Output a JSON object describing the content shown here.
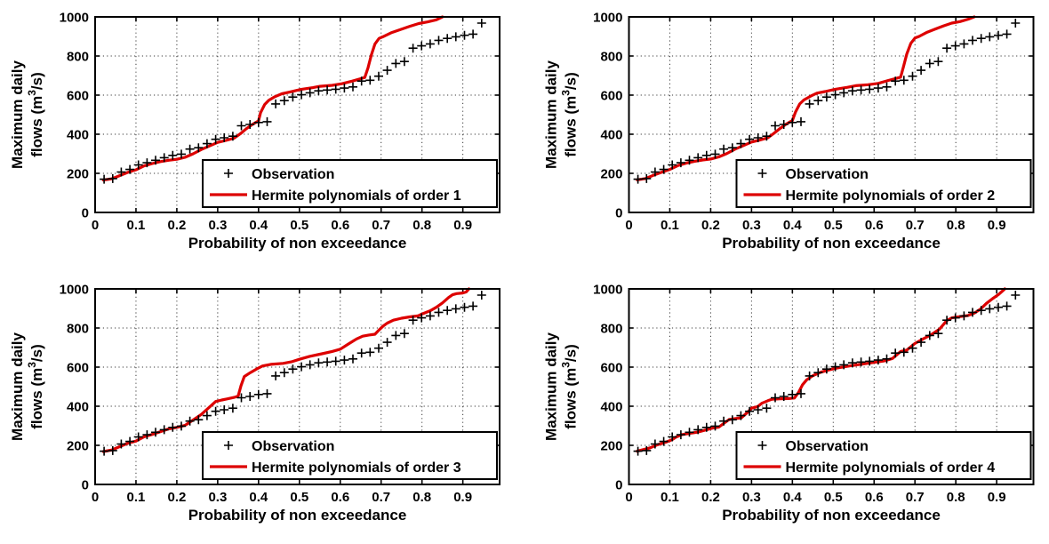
{
  "figure": {
    "background": "#ffffff"
  },
  "colors": {
    "hermite_line": "#dd0000",
    "observation_marker": "#000000",
    "grid": "#3a3a3a",
    "axis": "#000000",
    "legend_border": "#000000",
    "legend_background": "#ffffff",
    "text": "#000000"
  },
  "chart_data": {
    "type": "line",
    "layout": "2x2 grid of identical-axis plots",
    "xlabel": "Probability of non exceedance",
    "ylabel": {
      "line1": "Maximum daily",
      "line2_pre": "flows (m",
      "line2_sup": "3",
      "line2_post": "/s)"
    },
    "xlim": [
      0,
      0.99
    ],
    "ylim": [
      0,
      1000
    ],
    "grid": true,
    "xtick_values": [
      0,
      0.1,
      0.2,
      0.3,
      0.4,
      0.5,
      0.6,
      0.7,
      0.8,
      0.9
    ],
    "xtick_labels": [
      "0",
      "0.1",
      "0.2",
      "0.3",
      "0.4",
      "0.5",
      "0.6",
      "0.7",
      "0.8",
      "0.9"
    ],
    "ytick_values": [
      0,
      200,
      400,
      600,
      800,
      1000
    ],
    "ytick_labels": [
      "0",
      "200",
      "400",
      "600",
      "800",
      "1000"
    ],
    "legend_position": "inside lower right",
    "observation_legend": "Observation",
    "observations": {
      "x": [
        0.022,
        0.043,
        0.064,
        0.085,
        0.106,
        0.127,
        0.148,
        0.169,
        0.19,
        0.211,
        0.232,
        0.253,
        0.274,
        0.295,
        0.316,
        0.337,
        0.358,
        0.379,
        0.4,
        0.421,
        0.442,
        0.463,
        0.484,
        0.505,
        0.526,
        0.547,
        0.568,
        0.589,
        0.61,
        0.631,
        0.652,
        0.673,
        0.694,
        0.715,
        0.736,
        0.757,
        0.778,
        0.799,
        0.82,
        0.841,
        0.862,
        0.883,
        0.904,
        0.925,
        0.946
      ],
      "y": [
        170,
        173,
        207,
        220,
        243,
        254,
        267,
        280,
        292,
        298,
        324,
        331,
        352,
        374,
        382,
        390,
        443,
        450,
        460,
        464,
        555,
        572,
        590,
        602,
        612,
        622,
        626,
        630,
        636,
        642,
        672,
        676,
        697,
        727,
        762,
        772,
        840,
        852,
        862,
        880,
        890,
        898,
        906,
        912,
        968
      ]
    },
    "panels": [
      {
        "legend": "Hermite polynomials of order 1",
        "curve": {
          "x": [
            0.02,
            0.04,
            0.06,
            0.08,
            0.1,
            0.12,
            0.14,
            0.16,
            0.18,
            0.2,
            0.22,
            0.24,
            0.26,
            0.28,
            0.3,
            0.32,
            0.34,
            0.355,
            0.37,
            0.385,
            0.4,
            0.405,
            0.415,
            0.425,
            0.44,
            0.457,
            0.475,
            0.504,
            0.533,
            0.55,
            0.58,
            0.604,
            0.63,
            0.65,
            0.66,
            0.668,
            0.676,
            0.685,
            0.695,
            0.704,
            0.726,
            0.748,
            0.77,
            0.792,
            0.813,
            0.835,
            0.85
          ],
          "y": [
            166,
            172,
            188,
            205,
            218,
            238,
            250,
            260,
            267,
            272,
            282,
            300,
            322,
            340,
            358,
            368,
            380,
            402,
            428,
            450,
            468,
            510,
            552,
            573,
            592,
            607,
            615,
            629,
            638,
            645,
            650,
            658,
            672,
            684,
            690,
            740,
            805,
            862,
            890,
            898,
            920,
            936,
            952,
            966,
            974,
            985,
            1000
          ]
        }
      },
      {
        "legend": "Hermite polynomials of order 2",
        "curve": {
          "x": [
            0.02,
            0.04,
            0.06,
            0.08,
            0.1,
            0.12,
            0.14,
            0.16,
            0.18,
            0.2,
            0.22,
            0.24,
            0.26,
            0.28,
            0.3,
            0.32,
            0.34,
            0.355,
            0.37,
            0.385,
            0.4,
            0.408,
            0.418,
            0.428,
            0.445,
            0.46,
            0.48,
            0.505,
            0.535,
            0.555,
            0.585,
            0.61,
            0.635,
            0.655,
            0.665,
            0.672,
            0.68,
            0.69,
            0.7,
            0.71,
            0.73,
            0.75,
            0.77,
            0.79,
            0.81,
            0.83,
            0.845
          ],
          "y": [
            167,
            173,
            190,
            206,
            220,
            240,
            252,
            261,
            268,
            273,
            284,
            302,
            324,
            342,
            360,
            370,
            382,
            405,
            430,
            452,
            470,
            515,
            555,
            575,
            595,
            610,
            618,
            630,
            640,
            648,
            653,
            660,
            675,
            686,
            692,
            745,
            810,
            865,
            892,
            900,
            922,
            938,
            954,
            968,
            976,
            988,
            1000
          ]
        }
      },
      {
        "legend": "Hermite polynomials of order 3",
        "curve": {
          "x": [
            0.02,
            0.04,
            0.06,
            0.08,
            0.1,
            0.12,
            0.14,
            0.16,
            0.18,
            0.2,
            0.22,
            0.24,
            0.26,
            0.28,
            0.295,
            0.31,
            0.325,
            0.34,
            0.35,
            0.357,
            0.365,
            0.38,
            0.395,
            0.41,
            0.43,
            0.46,
            0.48,
            0.5,
            0.525,
            0.555,
            0.58,
            0.6,
            0.62,
            0.64,
            0.655,
            0.67,
            0.685,
            0.695,
            0.705,
            0.715,
            0.73,
            0.75,
            0.77,
            0.79,
            0.8,
            0.82,
            0.835,
            0.85,
            0.865,
            0.875,
            0.885,
            0.9,
            0.908,
            0.915
          ],
          "y": [
            168,
            176,
            193,
            211,
            222,
            244,
            256,
            270,
            284,
            292,
            302,
            330,
            358,
            396,
            424,
            432,
            438,
            445,
            452,
            505,
            552,
            572,
            590,
            606,
            614,
            619,
            627,
            640,
            655,
            668,
            680,
            692,
            718,
            744,
            758,
            764,
            768,
            790,
            810,
            825,
            840,
            850,
            857,
            862,
            872,
            888,
            906,
            928,
            956,
            970,
            976,
            979,
            984,
            1000
          ]
        }
      },
      {
        "legend": "Hermite polynomials of order 4",
        "curve": {
          "x": [
            0.02,
            0.035,
            0.05,
            0.07,
            0.09,
            0.105,
            0.115,
            0.13,
            0.15,
            0.17,
            0.19,
            0.205,
            0.22,
            0.232,
            0.245,
            0.26,
            0.275,
            0.29,
            0.3,
            0.315,
            0.325,
            0.34,
            0.35,
            0.37,
            0.39,
            0.405,
            0.415,
            0.425,
            0.435,
            0.45,
            0.47,
            0.49,
            0.51,
            0.54,
            0.57,
            0.6,
            0.625,
            0.645,
            0.655,
            0.665,
            0.68,
            0.7,
            0.72,
            0.74,
            0.76,
            0.778,
            0.79,
            0.81,
            0.83,
            0.845,
            0.86,
            0.875,
            0.89,
            0.905,
            0.92
          ],
          "y": [
            170,
            178,
            186,
            203,
            216,
            228,
            242,
            255,
            262,
            268,
            280,
            288,
            293,
            312,
            332,
            337,
            341,
            368,
            390,
            398,
            415,
            428,
            436,
            438,
            439,
            442,
            470,
            510,
            535,
            556,
            574,
            586,
            596,
            606,
            615,
            624,
            632,
            644,
            662,
            680,
            687,
            721,
            744,
            766,
            794,
            838,
            852,
            858,
            864,
            876,
            896,
            926,
            950,
            972,
            1000
          ]
        }
      }
    ]
  }
}
